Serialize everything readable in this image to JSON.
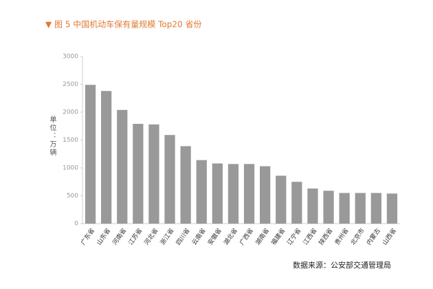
{
  "chart_data": {
    "type": "bar",
    "title": "▼ 图 5  中国机动车保有量规模 Top20 省份",
    "y_label": "单位：万辆",
    "source": "数据来源：公安部交通管理局",
    "categories": [
      "广东省",
      "山东省",
      "河南省",
      "江苏省",
      "河北省",
      "浙江省",
      "四川省",
      "云南省",
      "安徽省",
      "湖北省",
      "广西省",
      "湖南省",
      "福建省",
      "辽宁省",
      "江西省",
      "陕西省",
      "贵州省",
      "北京市",
      "内蒙古",
      "山西省"
    ],
    "values": [
      2490,
      2380,
      2040,
      1790,
      1780,
      1590,
      1390,
      1140,
      1080,
      1070,
      1070,
      1030,
      860,
      750,
      630,
      590,
      550,
      550,
      550,
      540
    ],
    "color": "#999999",
    "ylim": [
      0,
      3000
    ],
    "yticks": [
      0,
      500,
      1000,
      1500,
      2000,
      2500,
      3000
    ],
    "grid": false
  }
}
